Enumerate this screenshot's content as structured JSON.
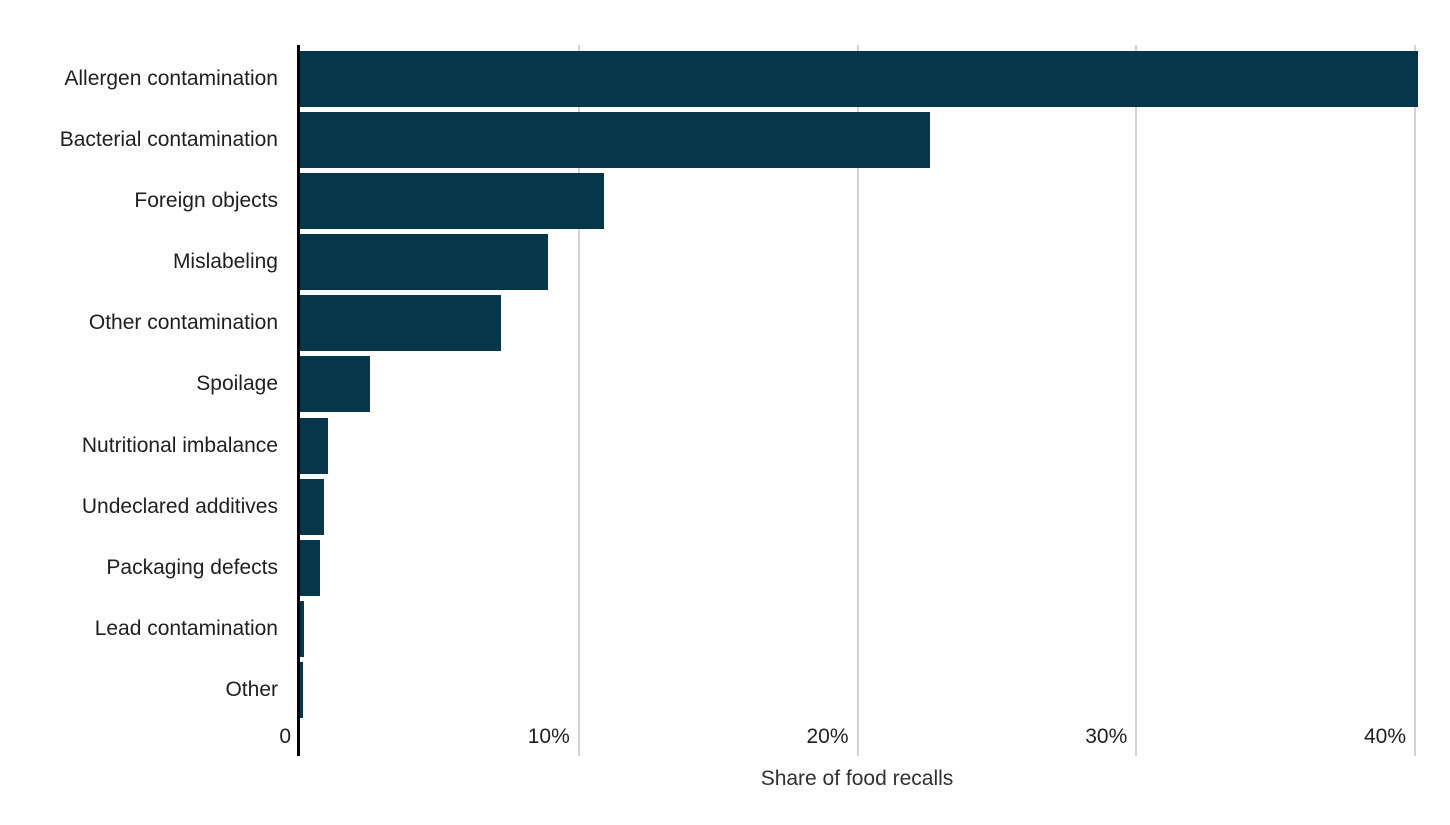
{
  "chart_data": {
    "type": "bar",
    "orientation": "horizontal",
    "title": "",
    "xlabel": "Share of food recalls",
    "ylabel": "",
    "categories": [
      "Allergen contamination",
      "Bacterial contamination",
      "Foreign objects",
      "Mislabeling",
      "Other contamination",
      "Spoilage",
      "Nutritional imbalance",
      "Undeclared additives",
      "Packaging defects",
      "Lead contamination",
      "Other"
    ],
    "values": [
      40.1,
      22.6,
      10.9,
      8.9,
      7.2,
      2.5,
      1.0,
      0.85,
      0.7,
      0.15,
      0.12
    ],
    "unit": "%",
    "xlim": [
      0,
      41.3
    ],
    "xticks": [
      {
        "value": 0,
        "label": "0"
      },
      {
        "value": 10,
        "label": "10%"
      },
      {
        "value": 20,
        "label": "20%"
      },
      {
        "value": 30,
        "label": "30%"
      },
      {
        "value": 40,
        "label": "40%"
      }
    ],
    "grid": true,
    "legend": false,
    "colors": {
      "bar": "#05364a",
      "gridline": "#d3d3d3",
      "zero_axis": "#000000",
      "category_label": "#1f1f1f",
      "tick_label": "#1f1f1f",
      "axis_title": "#303030",
      "background": "#ffffff"
    }
  }
}
